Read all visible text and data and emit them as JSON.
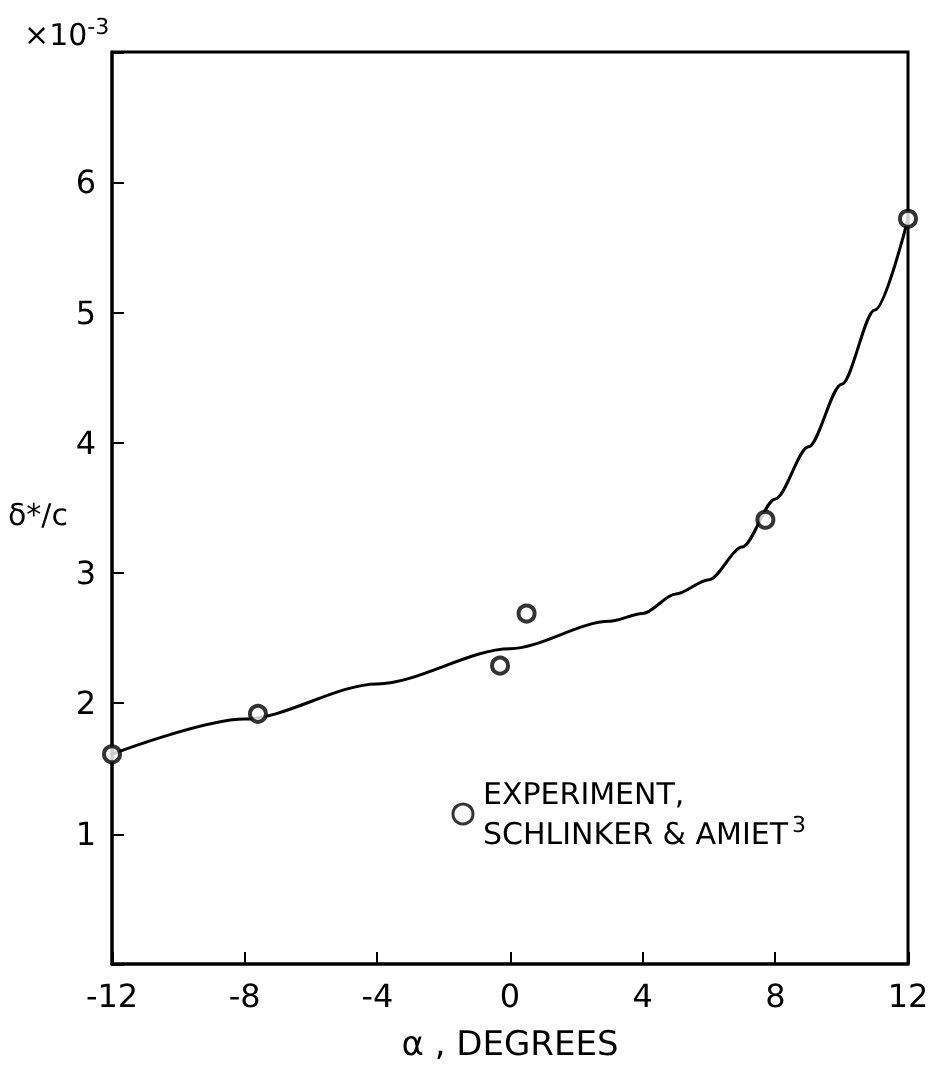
{
  "chart_data": {
    "type": "scatter",
    "xlabel": "α , DEGREES",
    "ylabel": "δ*/c",
    "annotations": [
      "×10$^{-3}$"
    ],
    "xlim": [
      -12,
      12
    ],
    "xticks": [
      -12,
      -8,
      -4,
      0,
      4,
      8,
      12
    ],
    "ylim": [
      0,
      7
    ],
    "yticks": [
      {
        "value": 0,
        "label": null
      },
      1,
      2,
      3,
      4,
      5,
      6,
      {
        "value": 7,
        "label": null
      }
    ],
    "grid": false,
    "legend": "bottom right",
    "series": [
      {
        "type": "line",
        "color": "#000000",
        "marker": "none",
        "line_style": "solid",
        "x": [
          -12,
          -8,
          -4,
          0,
          3,
          4,
          5,
          6,
          7,
          8,
          9,
          10,
          11,
          12
        ],
        "values": [
          1.61,
          1.88,
          2.15,
          2.42,
          2.63,
          2.69,
          2.84,
          2.95,
          3.2,
          3.57,
          3.97,
          4.45,
          5.02,
          5.72
        ]
      },
      {
        "name": "EXPERIMENT,\nSCHLINKER & AMIET$^{3}$",
        "color": "#000000",
        "marker": "circle",
        "x": [
          -12,
          -7.6,
          -0.3,
          0.5,
          7.7,
          12
        ],
        "values": [
          1.61,
          1.92,
          2.29,
          2.69,
          3.41,
          5.72
        ]
      }
    ]
  }
}
